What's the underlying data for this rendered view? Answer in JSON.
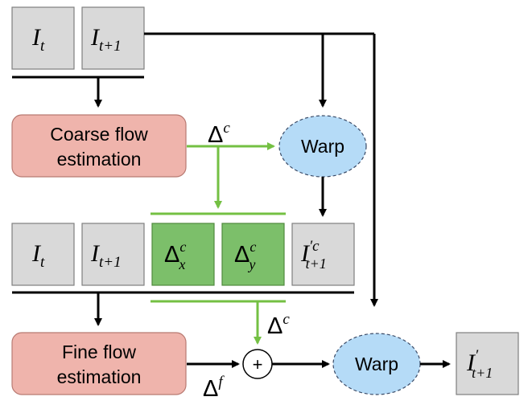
{
  "top_inputs": {
    "it": {
      "base": "I",
      "sub": "t"
    },
    "it1": {
      "base": "I",
      "sub": "t+1"
    }
  },
  "coarse_flow": {
    "line1": "Coarse flow",
    "line2": "estimation"
  },
  "delta_c_label": {
    "base": "Δ",
    "sup": "c"
  },
  "warp_top": "Warp",
  "mid_row": {
    "it": {
      "base": "I",
      "sub": "t"
    },
    "it1": {
      "base": "I",
      "sub": "t+1"
    },
    "dx": {
      "base": "Δ",
      "sup": "c",
      "sub": "x"
    },
    "dy": {
      "base": "Δ",
      "sup": "c",
      "sub": "y"
    },
    "warped": {
      "base": "I",
      "sup": "′c",
      "sub": "t+1"
    }
  },
  "delta_c_label2": {
    "base": "Δ",
    "sup": "c"
  },
  "fine_flow": {
    "line1": "Fine flow",
    "line2": "estimation"
  },
  "plus": "+",
  "delta_f_label": {
    "base": "Δ",
    "sup": "f"
  },
  "warp_bottom": "Warp",
  "output": {
    "base": "I",
    "sup": "′",
    "sub": "t+1"
  },
  "colors": {
    "gray_box": "#d9d9d9",
    "green_box": "#7cbf6a",
    "red_box": "#efb4ac",
    "blue_ellipse": "#b5dbf7",
    "green_line": "#74c043"
  }
}
